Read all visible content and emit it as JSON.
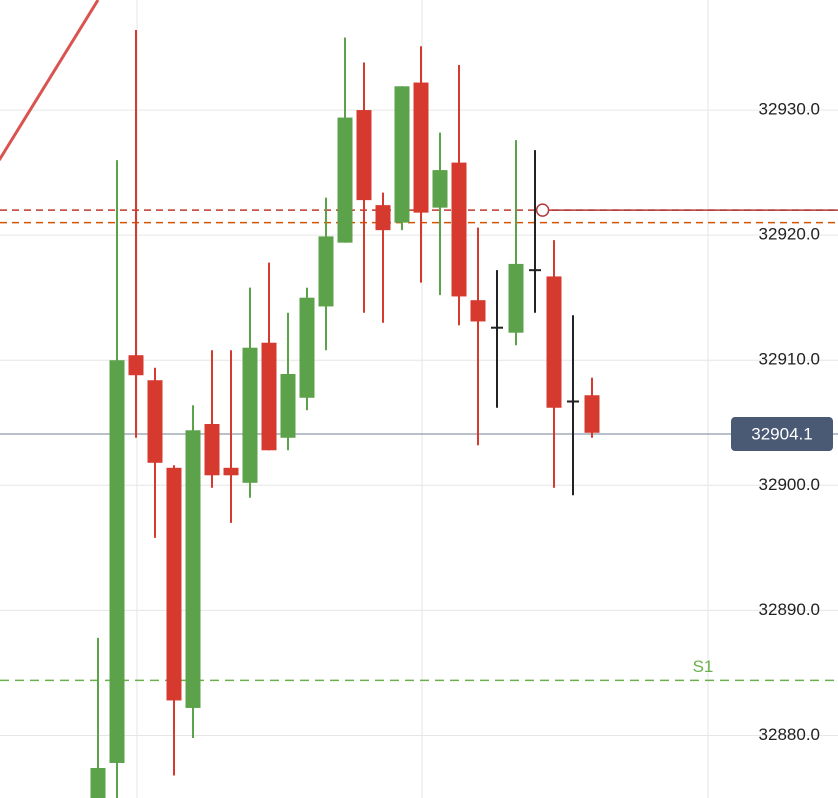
{
  "chart_data": {
    "type": "candlestick",
    "ylim": [
      32875.0,
      32938.8
    ],
    "yticks": [
      {
        "value": 32880,
        "label": "32880.0"
      },
      {
        "value": 32890,
        "label": "32890.0"
      },
      {
        "value": 32900,
        "label": "32900.0"
      },
      {
        "value": 32910,
        "label": "32910.0"
      },
      {
        "value": 32920,
        "label": "32920.0"
      },
      {
        "value": 32930,
        "label": "32930.0"
      }
    ],
    "grid": true,
    "up_color": "#5ba24a",
    "down_color": "#d6392e",
    "doji_color": "#222222",
    "candles": [
      {
        "open": 32875.0,
        "high": 32887.8,
        "low": 32875.0,
        "close": 32877.4
      },
      {
        "open": 32877.8,
        "high": 32926.0,
        "low": 32875.0,
        "close": 32910.0
      },
      {
        "open": 32910.4,
        "high": 32936.4,
        "low": 32903.8,
        "close": 32908.8
      },
      {
        "open": 32908.4,
        "high": 32909.4,
        "low": 32895.8,
        "close": 32901.8
      },
      {
        "open": 32901.4,
        "high": 32901.6,
        "low": 32876.8,
        "close": 32882.8
      },
      {
        "open": 32882.2,
        "high": 32906.4,
        "low": 32879.8,
        "close": 32904.4
      },
      {
        "open": 32904.9,
        "high": 32910.8,
        "low": 32899.8,
        "close": 32900.8
      },
      {
        "open": 32901.4,
        "high": 32910.8,
        "low": 32897.0,
        "close": 32900.8
      },
      {
        "open": 32900.2,
        "high": 32915.8,
        "low": 32899.0,
        "close": 32911.0
      },
      {
        "open": 32911.4,
        "high": 32917.8,
        "low": 32902.8,
        "close": 32902.8
      },
      {
        "open": 32903.8,
        "high": 32913.8,
        "low": 32902.8,
        "close": 32908.9
      },
      {
        "open": 32907.0,
        "high": 32915.8,
        "low": 32906.0,
        "close": 32915.0
      },
      {
        "open": 32914.3,
        "high": 32923.0,
        "low": 32910.8,
        "close": 32919.9
      },
      {
        "open": 32919.4,
        "high": 32935.8,
        "low": 32919.4,
        "close": 32929.4
      },
      {
        "open": 32930.0,
        "high": 32933.8,
        "low": 32913.8,
        "close": 32922.8
      },
      {
        "open": 32922.4,
        "high": 32923.4,
        "low": 32913.0,
        "close": 32920.4
      },
      {
        "open": 32921.0,
        "high": 32931.9,
        "low": 32920.4,
        "close": 32931.9
      },
      {
        "open": 32932.2,
        "high": 32935.1,
        "low": 32916.2,
        "close": 32921.8
      },
      {
        "open": 32922.2,
        "high": 32928.2,
        "low": 32915.2,
        "close": 32925.2
      },
      {
        "open": 32925.8,
        "high": 32933.6,
        "low": 32912.8,
        "close": 32915.1
      },
      {
        "open": 32914.8,
        "high": 32920.6,
        "low": 32903.2,
        "close": 32913.1
      },
      {
        "open": 32912.6,
        "high": 32917.2,
        "low": 32906.2,
        "close": 32912.6
      },
      {
        "open": 32912.2,
        "high": 32927.6,
        "low": 32911.2,
        "close": 32917.7
      },
      {
        "open": 32917.2,
        "high": 32926.8,
        "low": 32913.8,
        "close": 32917.2
      },
      {
        "open": 32916.7,
        "high": 32919.6,
        "low": 32899.8,
        "close": 32906.2
      },
      {
        "open": 32906.7,
        "high": 32913.6,
        "low": 32899.2,
        "close": 32906.7
      },
      {
        "open": 32907.2,
        "high": 32908.6,
        "low": 32903.8,
        "close": 32904.2
      }
    ],
    "hlines": [
      {
        "value": 32922.0,
        "color": "#c0392b",
        "style": "dashed"
      },
      {
        "value": 32921.0,
        "color": "#d35400",
        "style": "dashed"
      },
      {
        "value": 32922.0,
        "color": "#b03a3a",
        "style": "solid",
        "start": 23.4
      }
    ],
    "trendline": {
      "x": [
        -5.2,
        0
      ],
      "values": [
        32926.0,
        32938.8
      ],
      "color": "#d9534f"
    },
    "support": {
      "value": 32884.4,
      "label": "S1",
      "color": "#6ab04c"
    },
    "last_price": 32904.1,
    "last_price_color": "#4a5a75"
  }
}
